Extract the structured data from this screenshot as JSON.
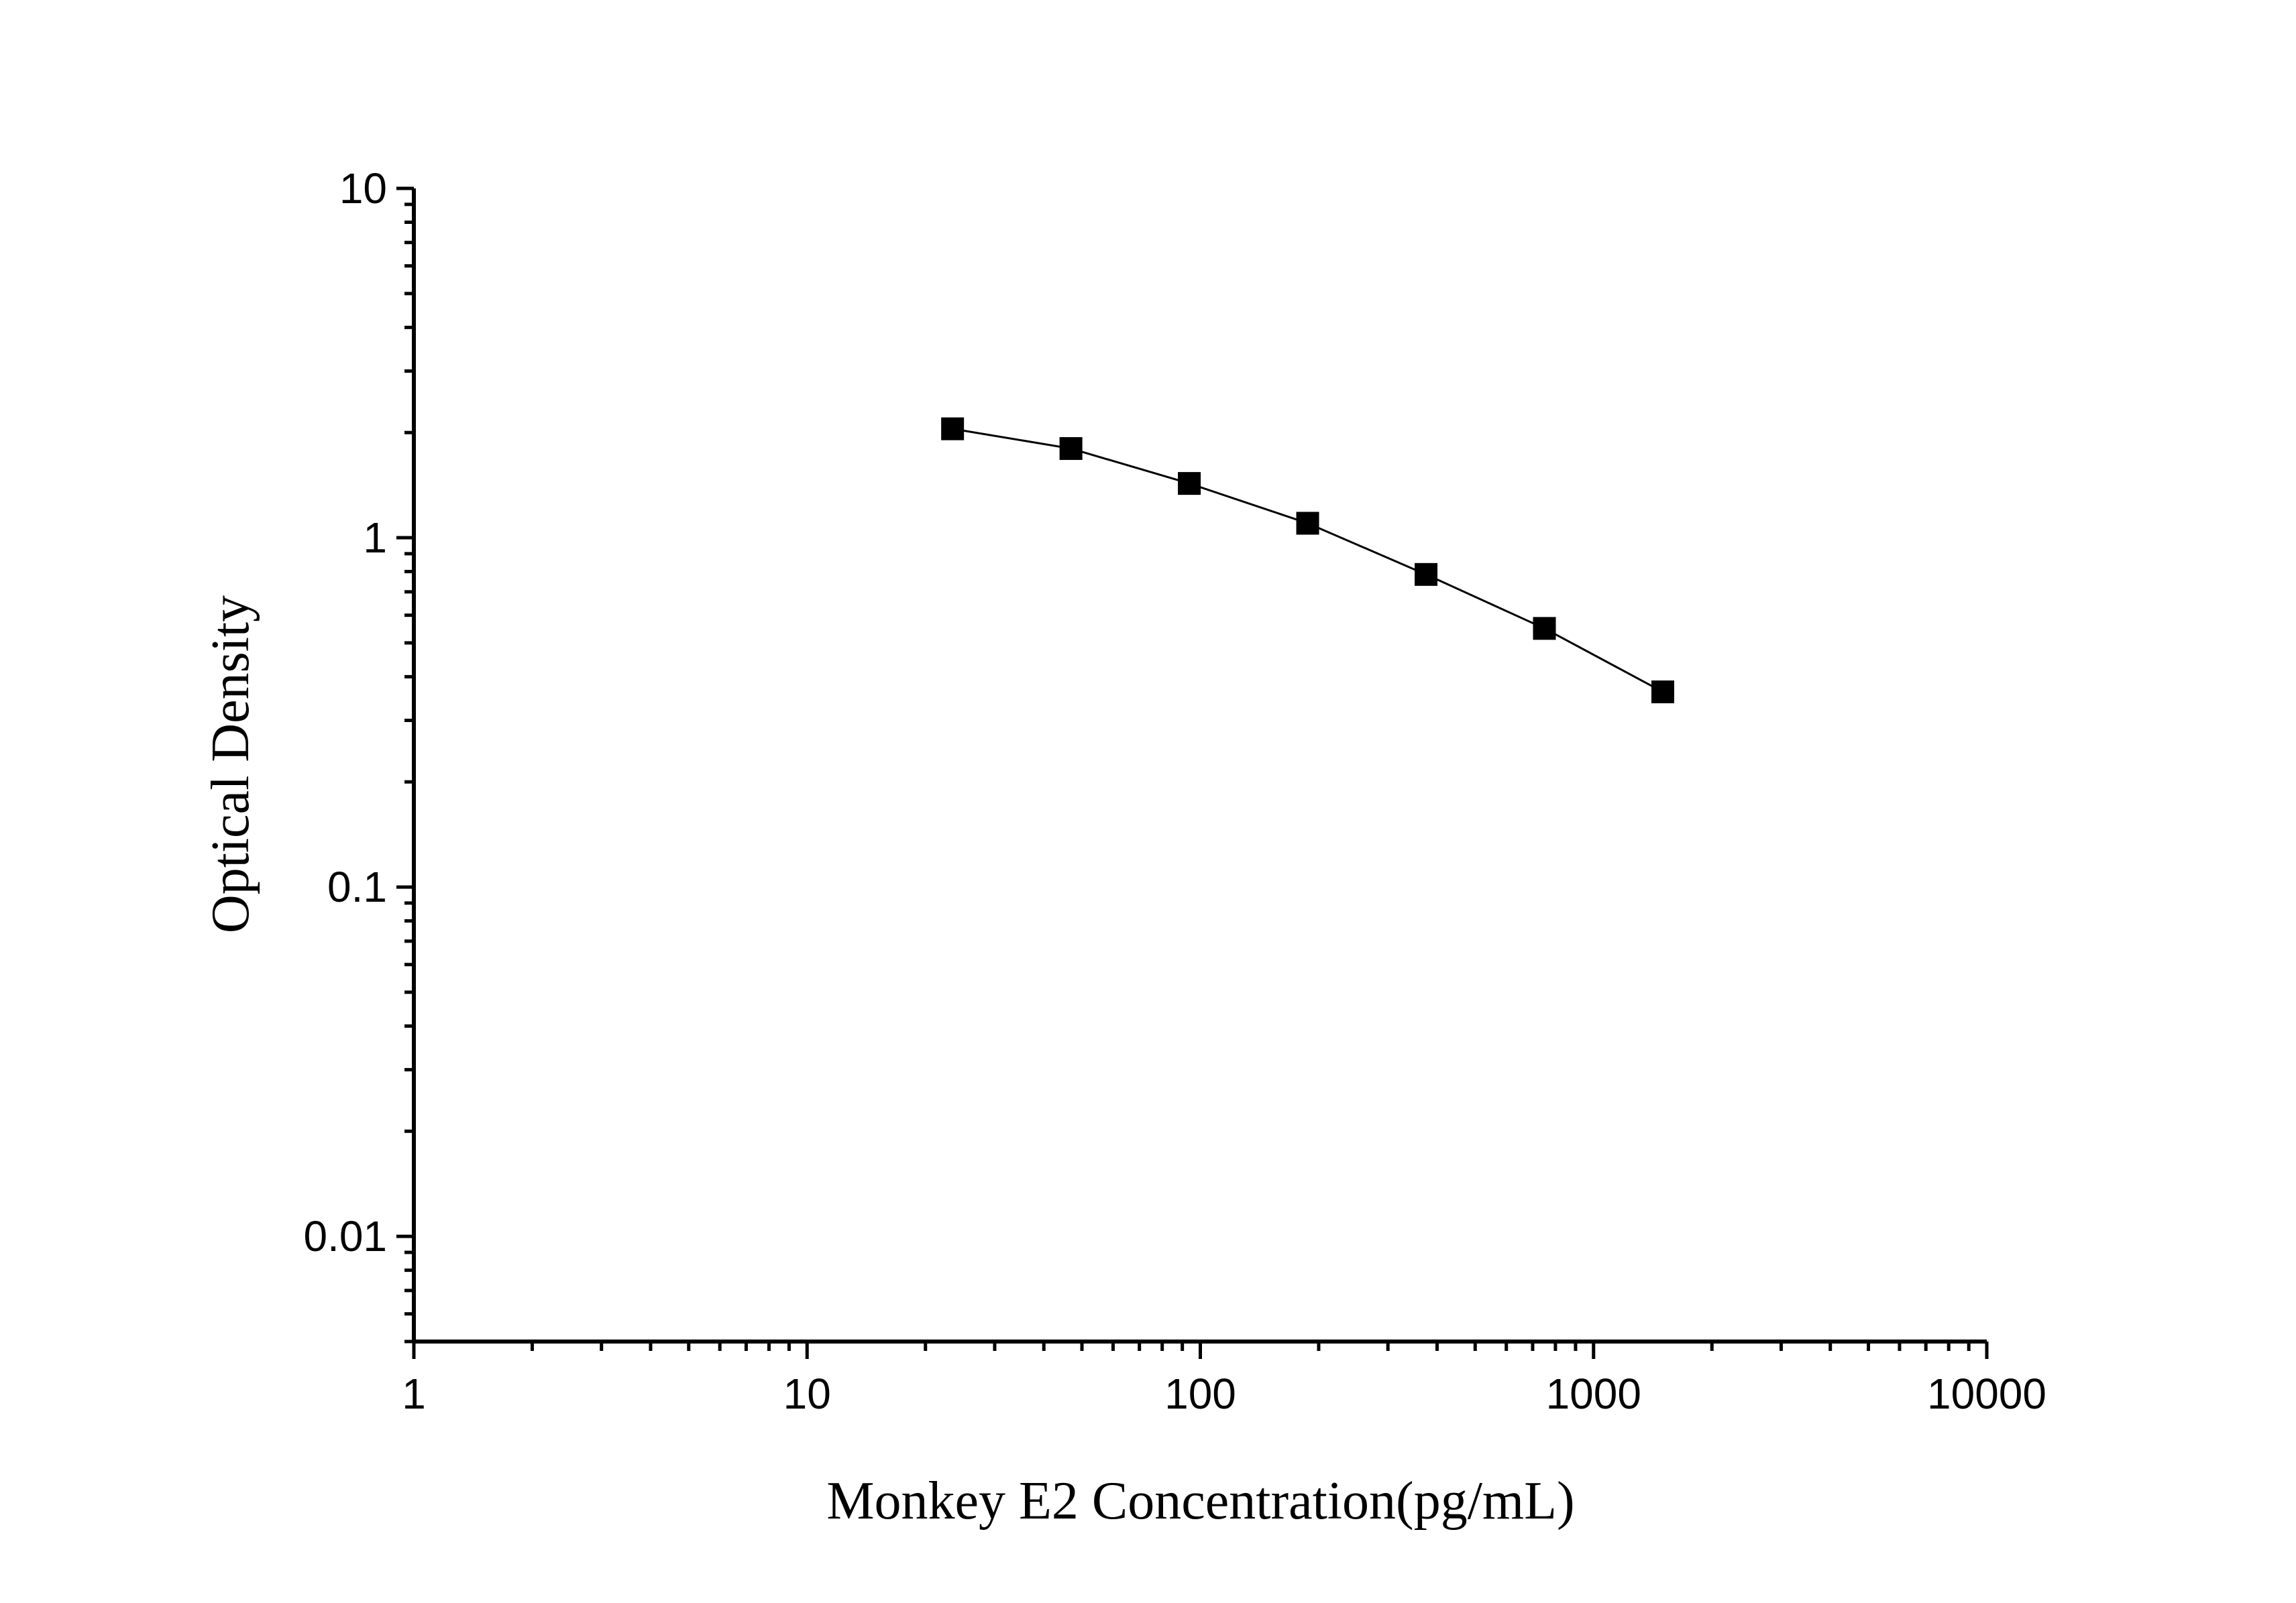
{
  "chart_data": {
    "type": "line",
    "title": "",
    "xlabel": "Monkey E2 Concentration(pg/mL)",
    "ylabel": "Optical Density",
    "x_scale": "log",
    "y_scale": "log",
    "xlim": [
      1,
      10000
    ],
    "ylim": [
      0.005,
      10
    ],
    "x_ticks": [
      "1",
      "10",
      "100",
      "1000",
      "10000"
    ],
    "y_ticks": [
      "0.01",
      "0.1",
      "1",
      "10"
    ],
    "grid": false,
    "marker": "square",
    "color": "#000000",
    "series": [
      {
        "x": [
          23.44,
          46.88,
          93.75,
          187.5,
          375,
          750,
          1500
        ],
        "y": [
          2.05,
          1.8,
          1.43,
          1.1,
          0.785,
          0.55,
          0.362
        ]
      }
    ]
  }
}
